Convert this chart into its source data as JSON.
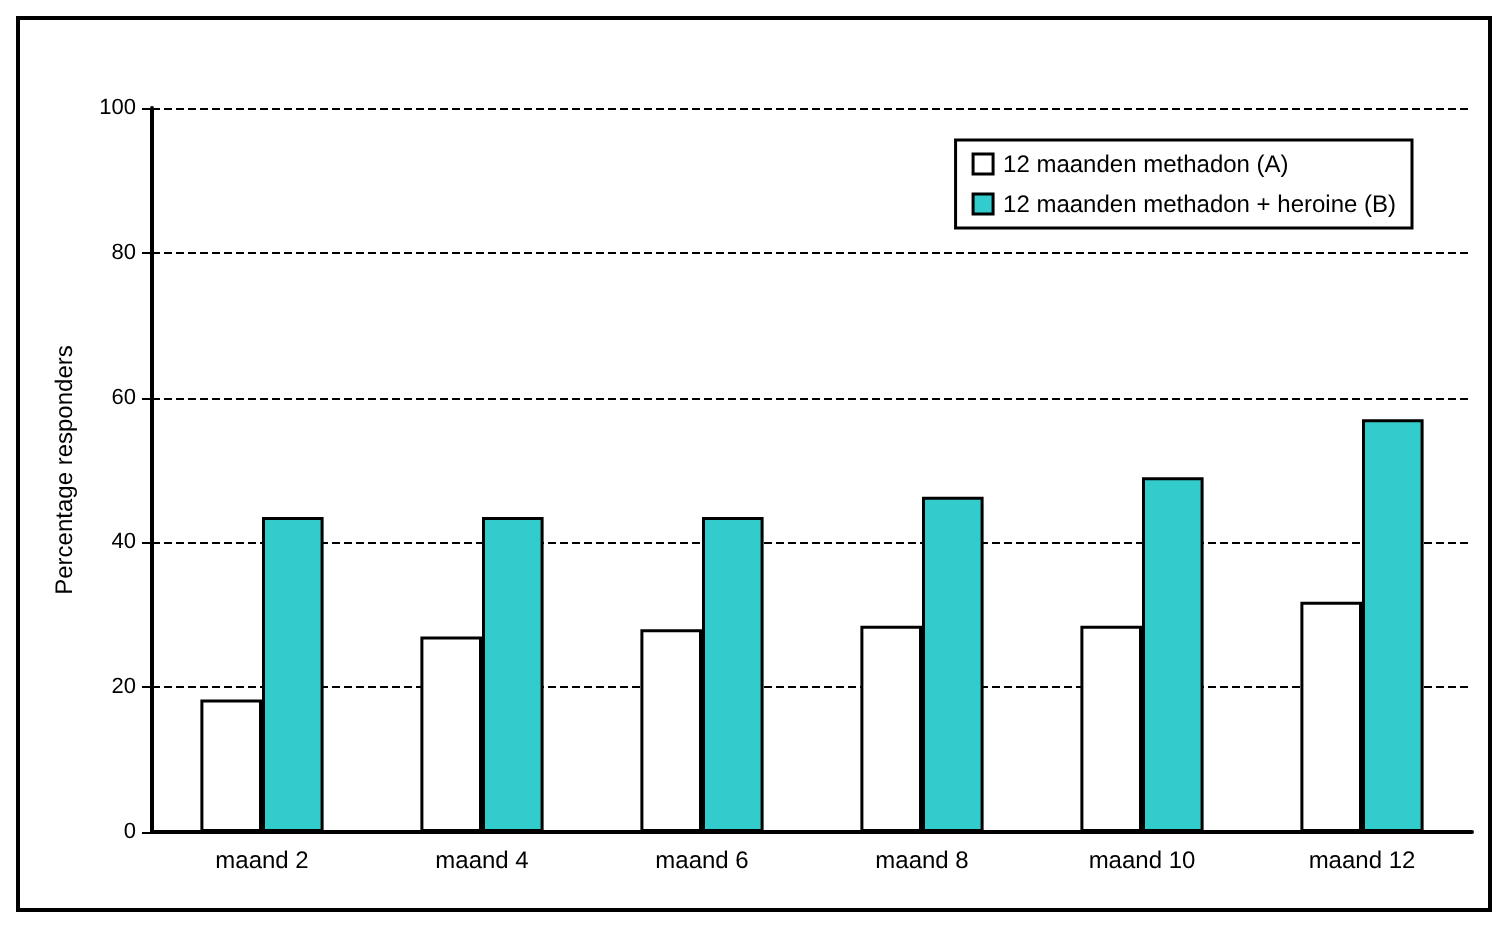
{
  "chart_data": {
    "type": "bar",
    "ylabel": "Percentage responders",
    "categories": [
      "maand 2",
      "maand 4",
      "maand 6",
      "maand 8",
      "maand 10",
      "maand 12"
    ],
    "series": [
      {
        "name": "12 maanden methadon (A)",
        "color": "#ffffff",
        "values": [
          18.3,
          27,
          28,
          28.5,
          28.5,
          31.8
        ]
      },
      {
        "name": "12 maanden methadon + heroine (B)",
        "color": "#33cccc",
        "values": [
          43.5,
          43.5,
          43.5,
          46.3,
          49,
          57
        ]
      }
    ],
    "ylim": [
      0,
      100
    ],
    "yticks": [
      0,
      20,
      40,
      60,
      80,
      100
    ],
    "grid": "y",
    "legend": "top right"
  }
}
